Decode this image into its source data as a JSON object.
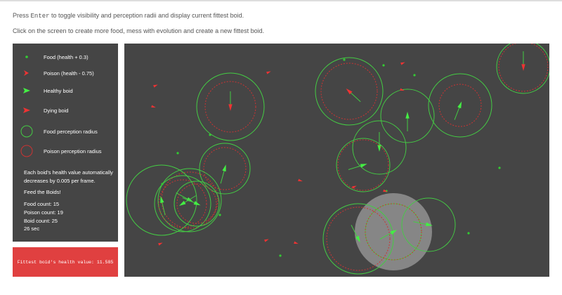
{
  "instructions": {
    "line1": {
      "before": "Press ",
      "key": "Enter",
      "after": " to toggle visibility and perception radii and display current fittest boid."
    },
    "line2": "Click on the screen to create more food, mess with evolution and create a new fittest boid."
  },
  "legend": [
    "Food (health + 0.3)",
    "Poison (health - 0.75)",
    "Healthy boid",
    "Dying boid",
    "Food perception radius",
    "Poison perception radius"
  ],
  "info": {
    "note": "Each boid's health value automatically decreases by 0.005 per frame.",
    "heading": "Feed the Boids!",
    "stats": [
      "Food count: 15",
      "Poison count: 19",
      "Boid count: 25",
      "26 sec"
    ]
  },
  "fittest": "Fittest boid's health value: 11.585"
}
